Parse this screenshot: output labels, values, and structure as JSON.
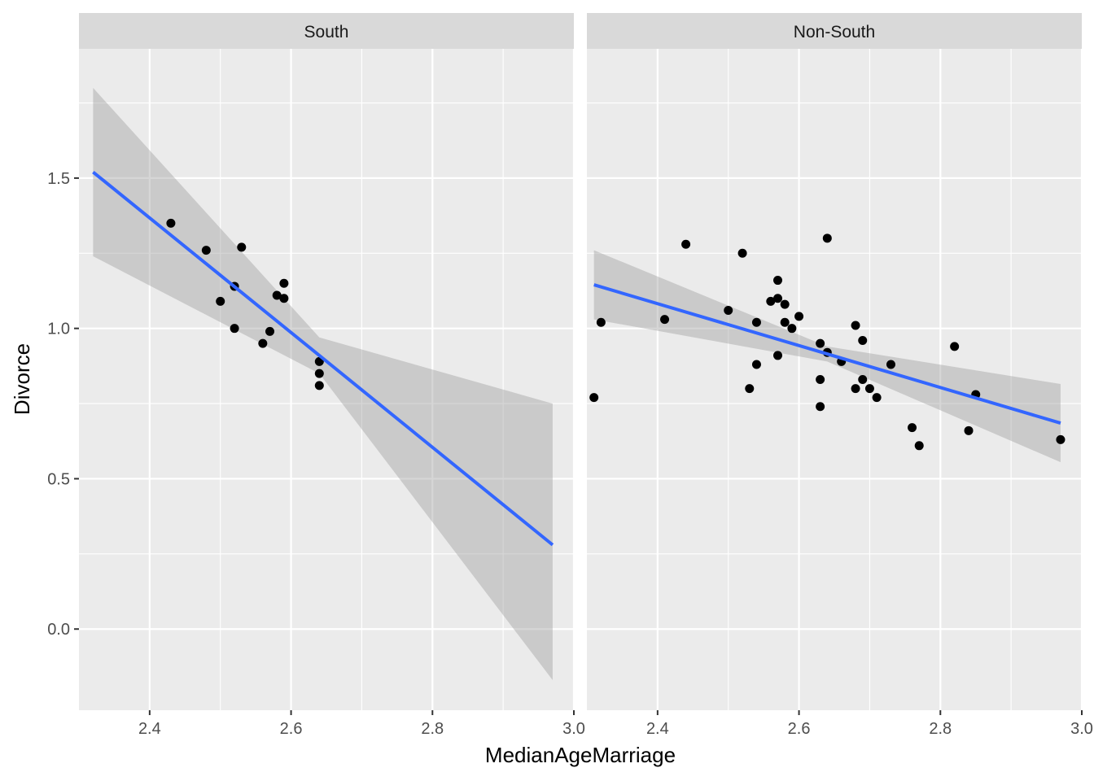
{
  "chart_data": {
    "type": "scatter",
    "xlabel": "MedianAgeMarriage",
    "ylabel": "Divorce",
    "xlim": [
      2.3,
      3.0
    ],
    "ylim": [
      -0.27,
      1.93
    ],
    "x_ticks": [
      2.4,
      2.6,
      2.8,
      3.0
    ],
    "x_tick_labels": [
      "2.4",
      "2.6",
      "2.8",
      "3.0"
    ],
    "y_ticks": [
      0.0,
      0.5,
      1.0,
      1.5
    ],
    "y_tick_labels": [
      "0.0",
      "0.5",
      "1.0",
      "1.5"
    ],
    "grid": true,
    "colors": {
      "panel_bg": "#ebebeb",
      "strip_bg": "#d9d9d9",
      "grid": "#ffffff",
      "point": "#000000",
      "fit_line": "#3366ff",
      "ribbon": "#999999"
    },
    "panels": [
      {
        "strip": "South",
        "points": [
          {
            "x": 2.43,
            "y": 1.35
          },
          {
            "x": 2.48,
            "y": 1.26
          },
          {
            "x": 2.53,
            "y": 1.27
          },
          {
            "x": 2.52,
            "y": 1.14
          },
          {
            "x": 2.5,
            "y": 1.09
          },
          {
            "x": 2.52,
            "y": 1.0
          },
          {
            "x": 2.58,
            "y": 1.11
          },
          {
            "x": 2.59,
            "y": 1.15
          },
          {
            "x": 2.59,
            "y": 1.1
          },
          {
            "x": 2.57,
            "y": 0.99
          },
          {
            "x": 2.56,
            "y": 0.95
          },
          {
            "x": 2.64,
            "y": 0.89
          },
          {
            "x": 2.64,
            "y": 0.85
          },
          {
            "x": 2.64,
            "y": 0.81
          }
        ],
        "fit": {
          "x": [
            2.32,
            2.64,
            2.97
          ],
          "y": [
            1.52,
            0.91,
            0.28
          ],
          "lower": [
            1.24,
            0.85,
            -0.17
          ],
          "upper": [
            1.8,
            0.97,
            0.75
          ]
        }
      },
      {
        "strip": "Non-South",
        "points": [
          {
            "x": 2.31,
            "y": 0.77
          },
          {
            "x": 2.32,
            "y": 1.02
          },
          {
            "x": 2.41,
            "y": 1.03
          },
          {
            "x": 2.44,
            "y": 1.28
          },
          {
            "x": 2.5,
            "y": 1.06
          },
          {
            "x": 2.52,
            "y": 1.25
          },
          {
            "x": 2.53,
            "y": 0.8
          },
          {
            "x": 2.54,
            "y": 1.02
          },
          {
            "x": 2.54,
            "y": 0.88
          },
          {
            "x": 2.56,
            "y": 1.09
          },
          {
            "x": 2.57,
            "y": 1.16
          },
          {
            "x": 2.57,
            "y": 1.1
          },
          {
            "x": 2.57,
            "y": 0.91
          },
          {
            "x": 2.58,
            "y": 1.08
          },
          {
            "x": 2.58,
            "y": 1.02
          },
          {
            "x": 2.59,
            "y": 1.0
          },
          {
            "x": 2.6,
            "y": 1.04
          },
          {
            "x": 2.63,
            "y": 0.95
          },
          {
            "x": 2.63,
            "y": 0.83
          },
          {
            "x": 2.63,
            "y": 0.74
          },
          {
            "x": 2.64,
            "y": 1.3
          },
          {
            "x": 2.64,
            "y": 0.92
          },
          {
            "x": 2.66,
            "y": 0.89
          },
          {
            "x": 2.68,
            "y": 1.01
          },
          {
            "x": 2.68,
            "y": 0.8
          },
          {
            "x": 2.69,
            "y": 0.96
          },
          {
            "x": 2.69,
            "y": 0.83
          },
          {
            "x": 2.7,
            "y": 0.8
          },
          {
            "x": 2.71,
            "y": 0.77
          },
          {
            "x": 2.73,
            "y": 0.88
          },
          {
            "x": 2.76,
            "y": 0.67
          },
          {
            "x": 2.77,
            "y": 0.61
          },
          {
            "x": 2.82,
            "y": 0.94
          },
          {
            "x": 2.84,
            "y": 0.66
          },
          {
            "x": 2.85,
            "y": 0.78
          },
          {
            "x": 2.97,
            "y": 0.63
          }
        ],
        "fit": {
          "x": [
            2.31,
            2.64,
            2.97
          ],
          "y": [
            1.145,
            0.915,
            0.685
          ],
          "lower": [
            1.03,
            0.89,
            0.555
          ],
          "upper": [
            1.26,
            0.94,
            0.815
          ]
        }
      }
    ]
  }
}
